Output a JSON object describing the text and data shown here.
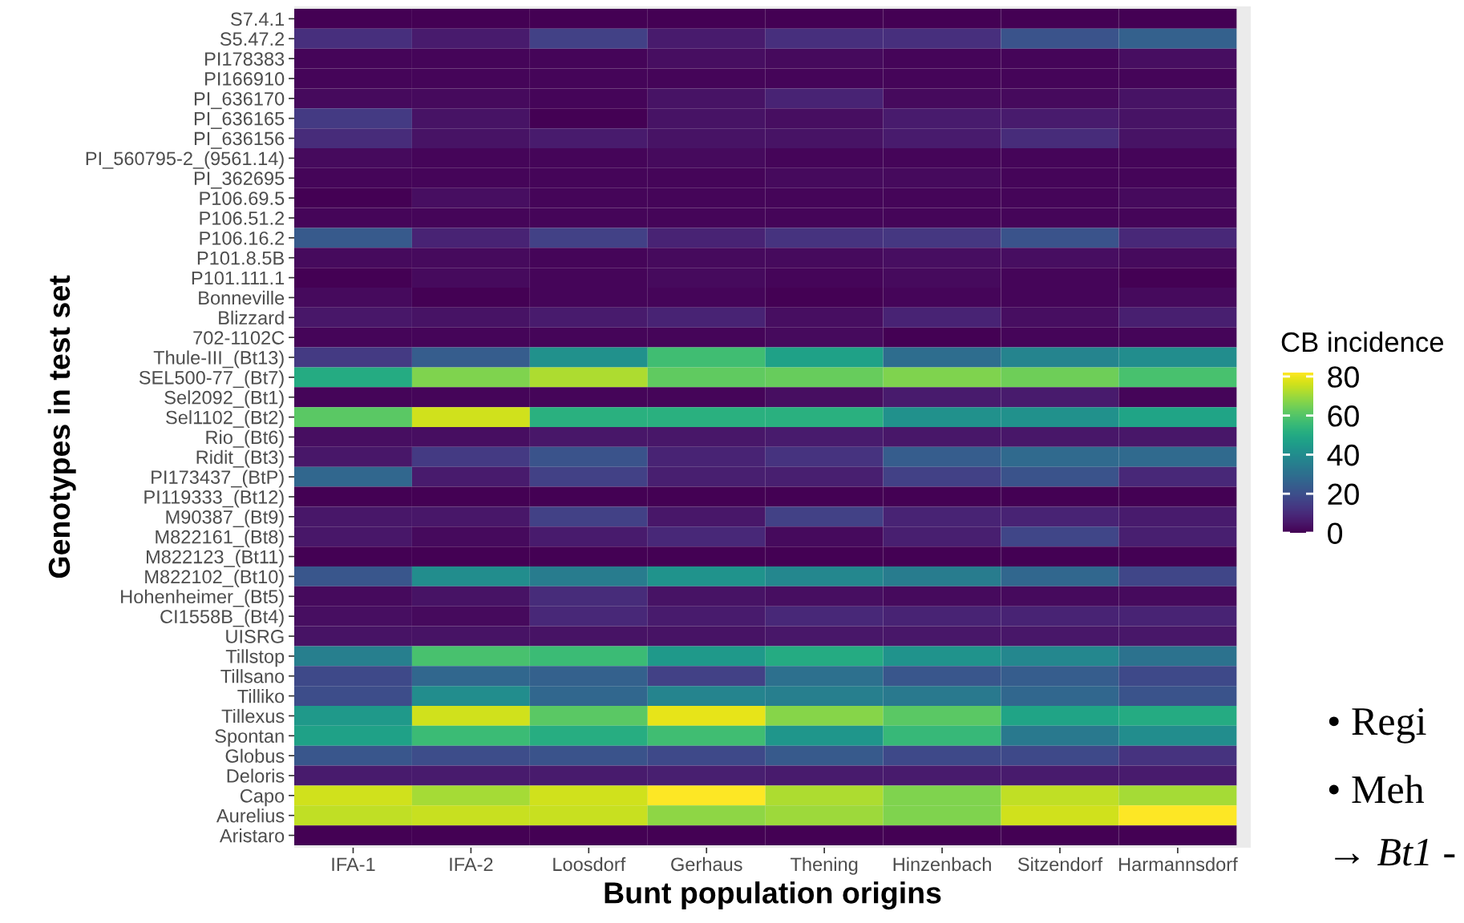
{
  "chart_data": {
    "type": "heatmap",
    "xlabel": "Bunt population origins",
    "ylabel": "Genotypes in test set",
    "clabel": "CB incidence",
    "categories": [
      "IFA-1",
      "IFA-2",
      "Loosdorf",
      "Gerhaus",
      "Thening",
      "Hinzenbach",
      "Sitzendorf",
      "Harmannsdorf"
    ],
    "y_categories": [
      "S7.4.1",
      "S5.47.2",
      "PI178383",
      "PI166910",
      "PI_636170",
      "PI_636165",
      "PI_636156",
      "PI_560795-2_(9561.14)",
      "PI_362695",
      "P106.69.5",
      "P106.51.2",
      "P106.16.2",
      "P101.8.5B",
      "P101.111.1",
      "Bonneville",
      "Blizzard",
      "702-1102C",
      "Thule-III_(Bt13)",
      "SEL500-77_(Bt7)",
      "Sel2092_(Bt1)",
      "Sel1102_(Bt2)",
      "Rio_(Bt6)",
      "Ridit_(Bt3)",
      "PI173437_(BtP)",
      "PI119333_(Bt12)",
      "M90387_(Bt9)",
      "M822161_(Bt8)",
      "M822123_(Bt11)",
      "M822102_(Bt10)",
      "Hohenheimer_(Bt5)",
      "CI1558B_(Bt4)",
      "UISRG",
      "Tillstop",
      "Tillsano",
      "Tilliko",
      "Tillexus",
      "Spontan",
      "Globus",
      "Deloris",
      "Capo",
      "Aurelius",
      "Aristaro"
    ],
    "cells": [
      [
        0,
        0,
        0,
        0,
        0,
        0,
        0,
        0
      ],
      [
        11,
        6,
        16,
        6,
        11,
        11,
        21,
        25
      ],
      [
        1,
        1,
        1,
        3,
        2,
        1,
        1,
        3
      ],
      [
        1,
        1,
        1,
        1,
        1,
        1,
        1,
        1
      ],
      [
        2,
        2,
        1,
        4,
        8,
        2,
        2,
        4
      ],
      [
        14,
        4,
        0,
        4,
        3,
        6,
        6,
        4
      ],
      [
        10,
        4,
        6,
        4,
        4,
        6,
        10,
        4
      ],
      [
        2,
        1,
        1,
        2,
        1,
        1,
        1,
        1
      ],
      [
        1,
        1,
        1,
        1,
        2,
        2,
        1,
        1
      ],
      [
        0,
        3,
        1,
        1,
        1,
        1,
        1,
        2
      ],
      [
        1,
        1,
        1,
        1,
        1,
        1,
        1,
        1
      ],
      [
        23,
        8,
        16,
        8,
        12,
        13,
        21,
        9
      ],
      [
        2,
        2,
        1,
        2,
        2,
        3,
        3,
        2
      ],
      [
        0,
        2,
        1,
        2,
        1,
        2,
        1,
        0
      ],
      [
        2,
        0,
        1,
        1,
        0,
        1,
        1,
        2
      ],
      [
        5,
        4,
        6,
        8,
        3,
        8,
        3,
        7
      ],
      [
        1,
        1,
        1,
        1,
        2,
        0,
        1,
        1
      ],
      [
        14,
        24,
        41,
        57,
        47,
        29,
        37,
        40
      ],
      [
        50,
        66,
        72,
        62,
        63,
        66,
        64,
        58
      ],
      [
        1,
        1,
        1,
        1,
        3,
        6,
        6,
        1
      ],
      [
        61,
        76,
        52,
        52,
        52,
        41,
        41,
        48
      ],
      [
        3,
        3,
        5,
        5,
        6,
        5,
        5,
        5
      ],
      [
        5,
        14,
        21,
        8,
        12,
        24,
        28,
        28
      ],
      [
        27,
        6,
        16,
        7,
        7,
        16,
        21,
        9
      ],
      [
        0,
        0,
        0,
        0,
        0,
        0,
        0,
        0
      ],
      [
        5,
        5,
        16,
        5,
        16,
        8,
        8,
        6
      ],
      [
        5,
        2,
        6,
        9,
        2,
        7,
        17,
        7
      ],
      [
        0,
        0,
        0,
        0,
        0,
        0,
        0,
        0
      ],
      [
        22,
        40,
        34,
        42,
        38,
        34,
        27,
        17
      ],
      [
        2,
        4,
        10,
        4,
        3,
        2,
        2,
        2
      ],
      [
        3,
        2,
        9,
        6,
        9,
        8,
        8,
        8
      ],
      [
        4,
        4,
        4,
        4,
        5,
        5,
        5,
        5
      ],
      [
        35,
        58,
        56,
        44,
        50,
        42,
        38,
        31
      ],
      [
        18,
        27,
        25,
        16,
        30,
        22,
        24,
        18
      ],
      [
        19,
        40,
        27,
        37,
        35,
        33,
        27,
        21
      ],
      [
        44,
        76,
        61,
        79,
        67,
        61,
        48,
        50
      ],
      [
        47,
        56,
        51,
        57,
        43,
        55,
        33,
        40
      ],
      [
        22,
        19,
        21,
        18,
        23,
        18,
        18,
        12
      ],
      [
        6,
        6,
        6,
        7,
        6,
        6,
        6,
        6
      ],
      [
        76,
        71,
        76,
        82,
        72,
        66,
        74,
        71
      ],
      [
        74,
        75,
        75,
        68,
        70,
        66,
        76,
        82
      ],
      [
        0,
        0,
        0,
        0,
        0,
        0,
        0,
        0
      ]
    ],
    "clim": [
      0,
      82
    ],
    "cticks": [
      0,
      20,
      40,
      60,
      80
    ],
    "annotations": [
      "• Regi",
      "• Meh",
      "→ Bt1 -"
    ]
  }
}
